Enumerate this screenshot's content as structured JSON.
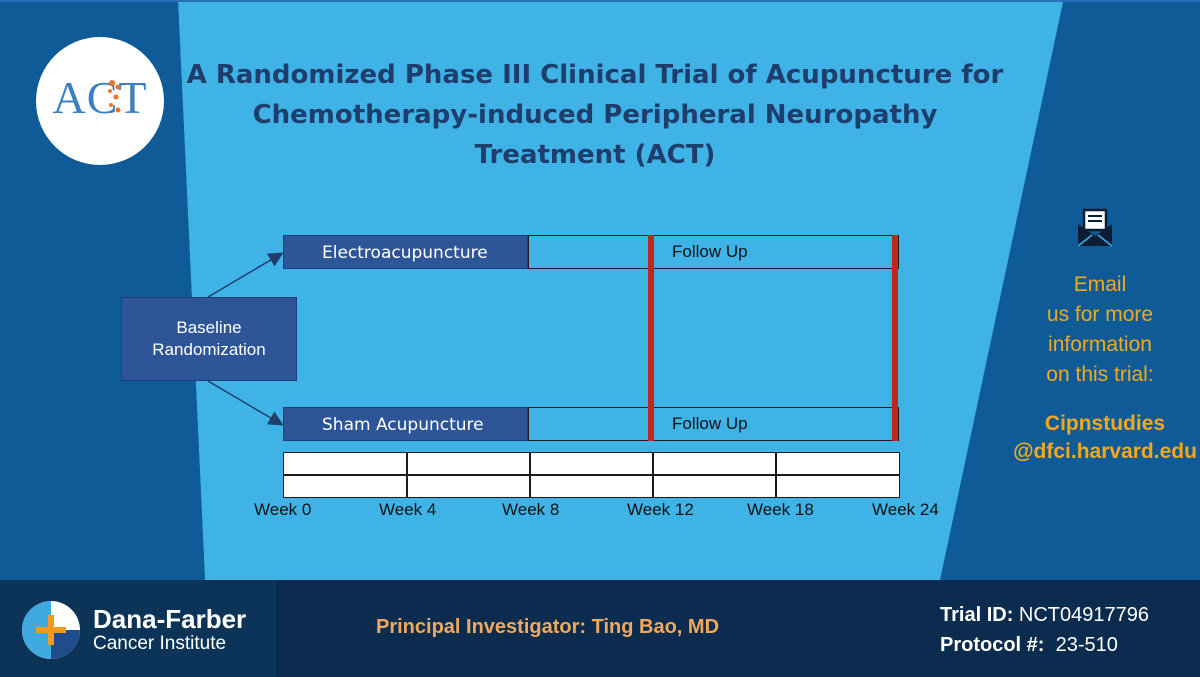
{
  "title_lines": [
    "A Randomized Phase III Clinical Trial of Acupuncture for",
    "Chemotherapy-induced Peripheral Neuropathy",
    "Treatment (ACT)"
  ],
  "logo_text": "ACT",
  "diagram": {
    "baseline_line1": "Baseline",
    "baseline_line2": "Randomization",
    "arm1_label": "Electroacupuncture",
    "arm2_label": "Sham Acupuncture",
    "follow_up": "Follow Up",
    "weeks": [
      "Week 0",
      "Week 4",
      "Week 8",
      "Week 12",
      "Week 18",
      "Week 24"
    ]
  },
  "contact": {
    "email_lines": [
      "Email",
      "us for more",
      "information",
      "on this trial:"
    ],
    "address_line1": "Cipnstudies",
    "address_line2": "@dfci.harvard.edu"
  },
  "footer": {
    "org_name": "Dana-Farber",
    "org_sub": "Cancer Institute",
    "pi": "Principal Investigator: Ting Bao, MD",
    "trial_id_label": "Trial ID:",
    "trial_id_value": "NCT04917796",
    "protocol_label": "Protocol #:",
    "protocol_value": "23-510"
  },
  "colors": {
    "dark_blue": "#0e5b97",
    "light_blue": "#3fb3e6",
    "arm_blue": "#2e5597",
    "red": "#c0271c",
    "gold": "#f2a81d",
    "footer": "#0b2c4f"
  }
}
